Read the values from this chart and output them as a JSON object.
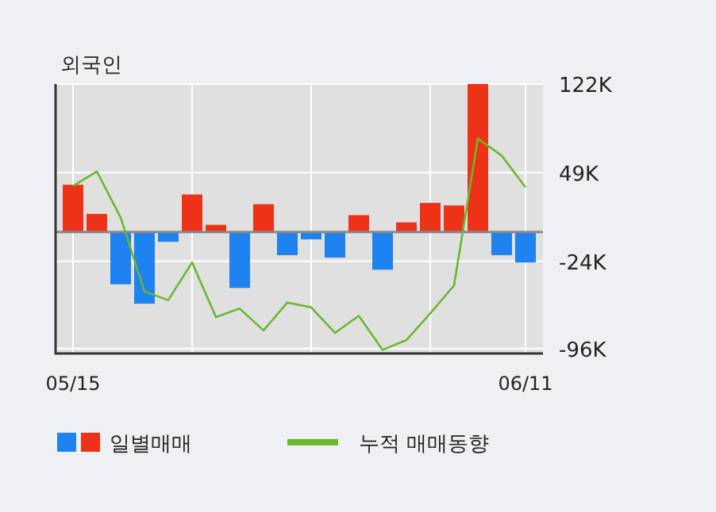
{
  "chart_data": {
    "type": "bar",
    "title": "외국인",
    "categories": [
      "05/15",
      null,
      null,
      null,
      null,
      null,
      null,
      null,
      null,
      null,
      null,
      null,
      null,
      null,
      null,
      null,
      null,
      null,
      null,
      "06/11"
    ],
    "series": [
      {
        "name": "일별매매",
        "colors": [
          "#ee3217",
          "#ee3217",
          "#1e82f0",
          "#1e82f0",
          "#1e82f0",
          "#ee3217",
          "#ee3217",
          "#1e82f0",
          "#ee3217",
          "#1e82f0",
          "#1e82f0",
          "#1e82f0",
          "#ee3217",
          "#1e82f0",
          "#ee3217",
          "#ee3217",
          "#ee3217",
          "#ee3217",
          "#1e82f0",
          "#1e82f0"
        ],
        "values": [
          39,
          15,
          -43,
          -59,
          -8,
          31,
          6,
          -46,
          23,
          -19,
          -6,
          -21,
          14,
          -31,
          8,
          24,
          22,
          122,
          -19,
          -25
        ]
      },
      {
        "name": "누적 매매동향",
        "type": "line",
        "color": "#6ab82b",
        "values": [
          38,
          50,
          12,
          -49,
          -56,
          -25,
          -70,
          -63,
          -81,
          -58,
          -62,
          -83,
          -69,
          -97,
          -89,
          -67,
          -44,
          77,
          63,
          37
        ]
      }
    ],
    "ylim": [
      -100,
      122
    ],
    "yticks": [
      {
        "value": 122,
        "label": "122K"
      },
      {
        "value": 49,
        "label": "49K"
      },
      {
        "value": -24,
        "label": "-24K"
      },
      {
        "value": -96,
        "label": "-96K"
      }
    ],
    "grid": true,
    "legend": "bottom"
  }
}
